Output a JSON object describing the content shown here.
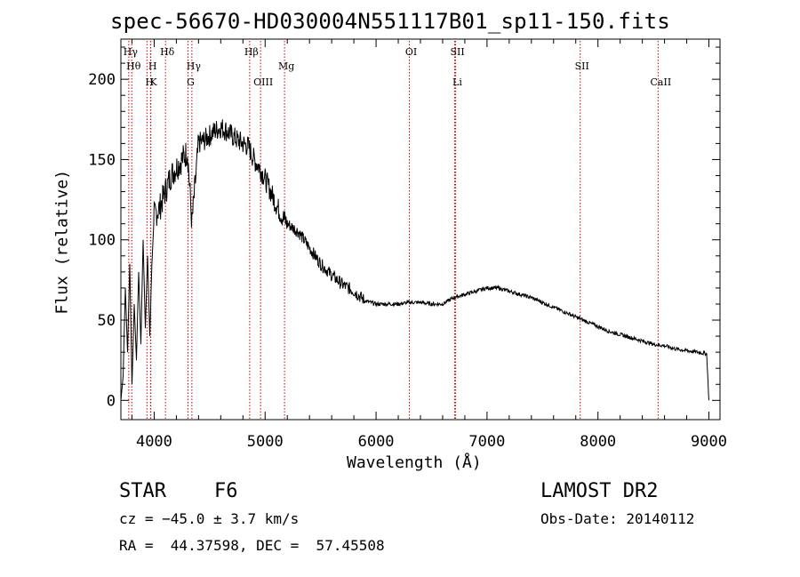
{
  "chart_data": {
    "type": "line",
    "title": "spec-56670-HD030004N551117B01_sp11-150.fits",
    "xlabel": "Wavelength (Å)",
    "ylabel": "Flux (relative)",
    "xlim": [
      3700,
      9100
    ],
    "ylim": [
      -12,
      225
    ],
    "xticks": [
      4000,
      5000,
      6000,
      7000,
      8000,
      9000
    ],
    "yticks": [
      0,
      50,
      100,
      150,
      200
    ],
    "x_tick_labels": [
      "4000",
      "5000",
      "6000",
      "7000",
      "8000",
      "9000"
    ],
    "y_tick_labels": [
      "0",
      "50",
      "100",
      "150",
      "200"
    ],
    "grid": false,
    "line_color": "#000000",
    "marker_color": "#cc0000",
    "spectrum": {
      "x": [
        3700,
        3720,
        3740,
        3760,
        3780,
        3800,
        3820,
        3840,
        3860,
        3880,
        3900,
        3920,
        3940,
        3960,
        3980,
        4000,
        4050,
        4100,
        4150,
        4200,
        4250,
        4300,
        4340,
        4400,
        4450,
        4500,
        4550,
        4600,
        4650,
        4700,
        4750,
        4800,
        4850,
        4900,
        4950,
        5000,
        5050,
        5100,
        5150,
        5200,
        5300,
        5400,
        5500,
        5600,
        5700,
        5800,
        5850,
        5900,
        6000,
        6100,
        6200,
        6300,
        6400,
        6500,
        6600,
        6700,
        6800,
        6900,
        7000,
        7100,
        7200,
        7300,
        7400,
        7500,
        7600,
        7700,
        7800,
        7900,
        8000,
        8100,
        8200,
        8300,
        8400,
        8500,
        8600,
        8700,
        8800,
        8900,
        8980,
        9000
      ],
      "y": [
        0,
        15,
        70,
        30,
        85,
        10,
        60,
        25,
        80,
        35,
        100,
        45,
        90,
        40,
        85,
        115,
        120,
        130,
        140,
        145,
        150,
        155,
        110,
        160,
        162,
        165,
        168,
        170,
        168,
        165,
        162,
        160,
        158,
        150,
        145,
        138,
        130,
        122,
        115,
        110,
        105,
        95,
        85,
        78,
        72,
        68,
        65,
        62,
        60,
        60,
        60,
        61,
        61,
        60,
        60,
        64,
        66,
        68,
        70,
        70,
        68,
        66,
        64,
        61,
        58,
        55,
        52,
        49,
        46,
        43,
        41,
        39,
        37,
        35,
        34,
        32,
        31,
        30,
        29,
        0
      ]
    },
    "lines": [
      {
        "label": "Hγ",
        "x": 3771,
        "row": 1
      },
      {
        "label": "Hθ",
        "x": 3798,
        "row": 2
      },
      {
        "label": "H",
        "x": 3935,
        "row": 3
      },
      {
        "label": "H",
        "x": 3970,
        "row": 2
      },
      {
        "label": "K",
        "x": 3968,
        "row": 3
      },
      {
        "label": "Hδ",
        "x": 4102,
        "row": 1
      },
      {
        "label": "Hγ",
        "x": 4340,
        "row": 2
      },
      {
        "label": "G",
        "x": 4305,
        "row": 3
      },
      {
        "label": "Hβ",
        "x": 4861,
        "row": 1
      },
      {
        "label": "OIII",
        "x": 4959,
        "row": 3
      },
      {
        "label": "Mg",
        "x": 5175,
        "row": 2
      },
      {
        "label": "OI",
        "x": 6300,
        "row": 1
      },
      {
        "label": "SII",
        "x": 6717,
        "row": 1
      },
      {
        "label": "Li",
        "x": 6708,
        "row": 3
      },
      {
        "label": "SII",
        "x": 7840,
        "row": 2
      },
      {
        "label": "CaII",
        "x": 8542,
        "row": 3
      }
    ]
  },
  "info": {
    "class_label": "STAR",
    "subclass": "F6",
    "survey": "LAMOST DR2",
    "cz": "cz = −45.0 ± 3.7 km/s",
    "obs_date": "Obs-Date: 20140112",
    "coords": "RA =  44.37598, DEC =  57.45508"
  }
}
